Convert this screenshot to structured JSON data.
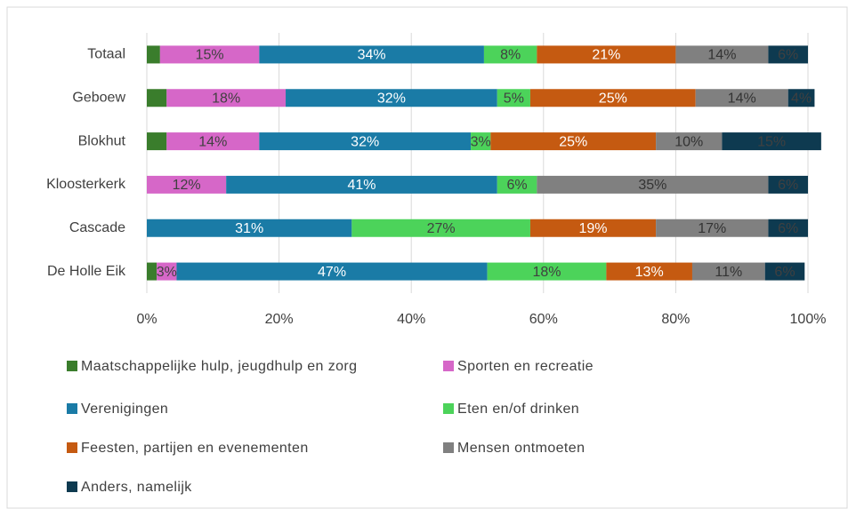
{
  "chart_data": {
    "type": "stacked-barh",
    "categories": [
      "Totaal",
      "Geboew",
      "Blokhut",
      "Kloosterkerk",
      "Cascade",
      "De Holle Eik"
    ],
    "series": [
      {
        "name": "Maatschappelijke hulp, jeugdhulp en zorg",
        "color": "#3a7d2c",
        "label_color": "#333333",
        "values": [
          2,
          3,
          3,
          null,
          null,
          1.5
        ],
        "value_labels": [
          null,
          null,
          null,
          null,
          null,
          null
        ]
      },
      {
        "name": "Sporten en recreatie",
        "color": "#d667c8",
        "label_color": "#404040",
        "values": [
          15,
          18,
          14,
          12,
          null,
          3
        ],
        "value_labels": [
          "15%",
          "18%",
          "14%",
          "12%",
          null,
          "3%"
        ]
      },
      {
        "name": "Verenigingen",
        "color": "#1a7ba6",
        "label_color": "#ffffff",
        "values": [
          34,
          32,
          32,
          41,
          31,
          47
        ],
        "value_labels": [
          "34%",
          "32%",
          "32%",
          "41%",
          "31%",
          "47%"
        ]
      },
      {
        "name": "Eten en/of drinken",
        "color": "#4cd35a",
        "label_color": "#404040",
        "values": [
          8,
          5,
          3,
          6,
          27,
          18
        ],
        "value_labels": [
          "8%",
          "5%",
          "3%",
          "6%",
          "27%",
          "18%"
        ]
      },
      {
        "name": "Feesten, partijen en evenementen",
        "color": "#c55a11",
        "label_color": "#ffffff",
        "values": [
          21,
          25,
          25,
          null,
          19,
          13
        ],
        "value_labels": [
          "21%",
          "25%",
          "25%",
          null,
          "19%",
          "13%"
        ]
      },
      {
        "name": "Mensen ontmoeten",
        "color": "#808080",
        "label_color": "#333333",
        "values": [
          14,
          14,
          10,
          35,
          17,
          11
        ],
        "value_labels": [
          "14%",
          "14%",
          "10%",
          "35%",
          "17%",
          "11%"
        ]
      },
      {
        "name": "Anders, namelijk",
        "color": "#0e3a50",
        "label_color": "#404040",
        "values": [
          6,
          4,
          15,
          6,
          6,
          6
        ],
        "value_labels": [
          "6%",
          "4%",
          "15%",
          "6%",
          "6%",
          "6%"
        ]
      }
    ],
    "xlim": [
      0,
      100
    ],
    "xticks": [
      {
        "value": 0,
        "label": "0%"
      },
      {
        "value": 20,
        "label": "20%"
      },
      {
        "value": 40,
        "label": "40%"
      },
      {
        "value": 60,
        "label": "60%"
      },
      {
        "value": 80,
        "label": "80%"
      },
      {
        "value": 100,
        "label": "100%"
      }
    ],
    "grid": true
  }
}
